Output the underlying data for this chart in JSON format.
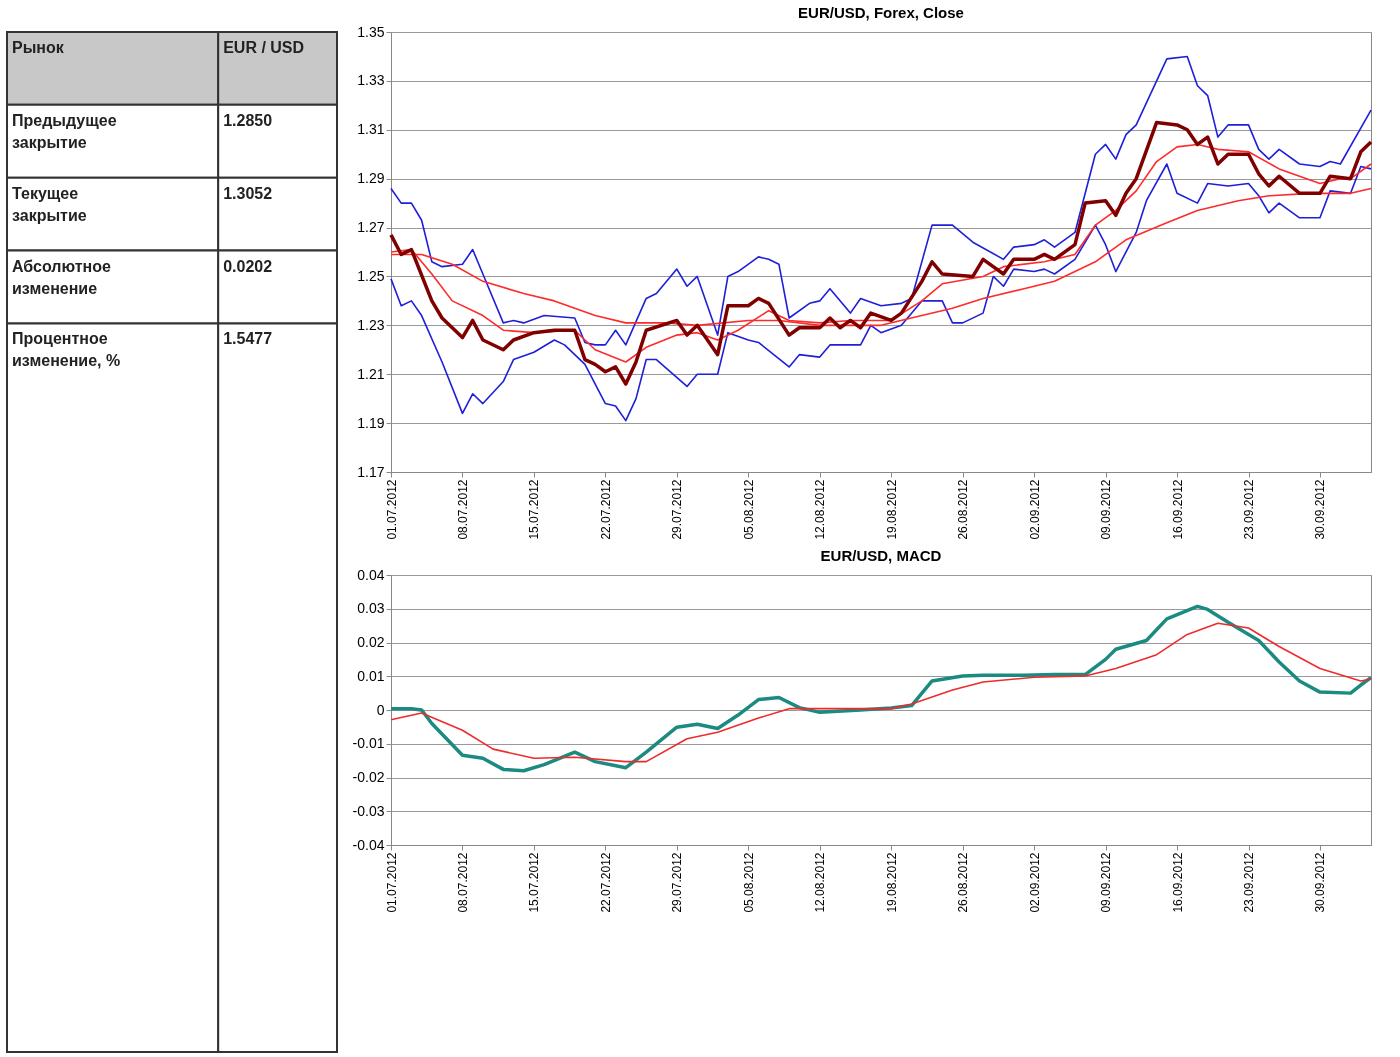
{
  "chart_data": [
    {
      "type": "other",
      "title": "Рынок",
      "subtitle": "EUR / USD",
      "categories": [
        "Предыдущее закрытие",
        "Текущее закрытие",
        "Абсолютное изменение",
        "Процентное изменение, %"
      ],
      "value_labels": [
        "1.2850",
        "1.3052",
        "0.0202",
        "1.5477"
      ]
    },
    {
      "type": "line",
      "title": "EUR/USD, Forex, Close",
      "grid": "y",
      "ylim": [
        1.17,
        1.35
      ],
      "yticks": [
        1.17,
        1.19,
        1.21,
        1.23,
        1.25,
        1.27,
        1.29,
        1.31,
        1.33,
        1.35
      ],
      "xlim": [
        "2012-07-01",
        "2012-10-05"
      ],
      "xticks": [
        {
          "value": "2012-07-01",
          "label": "01.07.2012"
        },
        {
          "value": "2012-07-08",
          "label": "08.07.2012"
        },
        {
          "value": "2012-07-15",
          "label": "15.07.2012"
        },
        {
          "value": "2012-07-22",
          "label": "22.07.2012"
        },
        {
          "value": "2012-07-29",
          "label": "29.07.2012"
        },
        {
          "value": "2012-08-05",
          "label": "05.08.2012"
        },
        {
          "value": "2012-08-12",
          "label": "12.08.2012"
        },
        {
          "value": "2012-08-19",
          "label": "19.08.2012"
        },
        {
          "value": "2012-08-26",
          "label": "26.08.2012"
        },
        {
          "value": "2012-09-02",
          "label": "02.09.2012"
        },
        {
          "value": "2012-09-09",
          "label": "09.09.2012"
        },
        {
          "value": "2012-09-16",
          "label": "16.09.2012"
        },
        {
          "value": "2012-09-23",
          "label": "23.09.2012"
        },
        {
          "value": "2012-09-30",
          "label": "30.09.2012"
        }
      ],
      "series": [
        {
          "color": "#1f1fd8",
          "x": [
            "2012-07-01",
            "2012-07-02",
            "2012-07-03",
            "2012-07-04",
            "2012-07-05",
            "2012-07-06",
            "2012-07-08",
            "2012-07-09",
            "2012-07-10",
            "2012-07-12",
            "2012-07-13",
            "2012-07-14",
            "2012-07-16",
            "2012-07-19",
            "2012-07-20",
            "2012-07-21",
            "2012-07-22",
            "2012-07-23",
            "2012-07-24",
            "2012-07-26",
            "2012-07-27",
            "2012-07-29",
            "2012-07-30",
            "2012-07-31",
            "2012-08-02",
            "2012-08-03",
            "2012-08-04",
            "2012-08-06",
            "2012-08-07",
            "2012-08-08",
            "2012-08-09",
            "2012-08-11",
            "2012-08-12",
            "2012-08-13",
            "2012-08-15",
            "2012-08-16",
            "2012-08-18",
            "2012-08-20",
            "2012-08-21",
            "2012-08-23",
            "2012-08-25",
            "2012-08-27",
            "2012-08-30",
            "2012-08-31",
            "2012-09-02",
            "2012-09-03",
            "2012-09-04",
            "2012-09-06",
            "2012-09-08",
            "2012-09-09",
            "2012-09-10",
            "2012-09-11",
            "2012-09-12",
            "2012-09-15",
            "2012-09-17",
            "2012-09-18",
            "2012-09-19",
            "2012-09-20",
            "2012-09-21",
            "2012-09-23",
            "2012-09-24",
            "2012-09-25",
            "2012-09-26",
            "2012-09-28",
            "2012-09-30",
            "2012-10-01",
            "2012-10-02",
            "2012-10-05"
          ],
          "values": [
            1.286,
            1.28,
            1.28,
            1.273,
            1.256,
            1.254,
            1.255,
            1.261,
            1.251,
            1.231,
            1.232,
            1.231,
            1.234,
            1.233,
            1.223,
            1.222,
            1.222,
            1.228,
            1.222,
            1.241,
            1.243,
            1.253,
            1.246,
            1.25,
            1.226,
            1.25,
            1.252,
            1.258,
            1.257,
            1.255,
            1.233,
            1.239,
            1.24,
            1.245,
            1.235,
            1.241,
            1.238,
            1.239,
            1.241,
            1.271,
            1.271,
            1.264,
            1.257,
            1.262,
            1.263,
            1.265,
            1.262,
            1.268,
            1.3,
            1.304,
            1.298,
            1.308,
            1.312,
            1.339,
            1.34,
            1.328,
            1.324,
            1.307,
            1.312,
            1.312,
            1.302,
            1.298,
            1.302,
            1.296,
            1.295,
            1.297,
            1.296,
            1.318
          ]
        },
        {
          "color": "#1f1fd8",
          "x": [
            "2012-07-01",
            "2012-07-02",
            "2012-07-03",
            "2012-07-04",
            "2012-07-06",
            "2012-07-08",
            "2012-07-09",
            "2012-07-10",
            "2012-07-12",
            "2012-07-13",
            "2012-07-15",
            "2012-07-17",
            "2012-07-18",
            "2012-07-20",
            "2012-07-22",
            "2012-07-23",
            "2012-07-24",
            "2012-07-25",
            "2012-07-26",
            "2012-07-27",
            "2012-07-30",
            "2012-07-31",
            "2012-08-02",
            "2012-08-03",
            "2012-08-05",
            "2012-08-06",
            "2012-08-09",
            "2012-08-10",
            "2012-08-12",
            "2012-08-13",
            "2012-08-15",
            "2012-08-16",
            "2012-08-17",
            "2012-08-18",
            "2012-08-20",
            "2012-08-22",
            "2012-08-24",
            "2012-08-25",
            "2012-08-26",
            "2012-08-28",
            "2012-08-29",
            "2012-08-30",
            "2012-08-31",
            "2012-09-02",
            "2012-09-03",
            "2012-09-04",
            "2012-09-06",
            "2012-09-08",
            "2012-09-09",
            "2012-09-10",
            "2012-09-12",
            "2012-09-13",
            "2012-09-15",
            "2012-09-16",
            "2012-09-18",
            "2012-09-19",
            "2012-09-21",
            "2012-09-23",
            "2012-09-24",
            "2012-09-25",
            "2012-09-26",
            "2012-09-28",
            "2012-09-30",
            "2012-10-01",
            "2012-10-03",
            "2012-10-04",
            "2012-10-05"
          ],
          "values": [
            1.249,
            1.238,
            1.24,
            1.234,
            1.215,
            1.194,
            1.202,
            1.198,
            1.207,
            1.216,
            1.219,
            1.224,
            1.222,
            1.214,
            1.198,
            1.197,
            1.191,
            1.2,
            1.216,
            1.216,
            1.205,
            1.21,
            1.21,
            1.227,
            1.224,
            1.223,
            1.213,
            1.218,
            1.217,
            1.222,
            1.222,
            1.222,
            1.23,
            1.227,
            1.23,
            1.24,
            1.24,
            1.231,
            1.231,
            1.235,
            1.25,
            1.246,
            1.253,
            1.252,
            1.253,
            1.251,
            1.257,
            1.271,
            1.263,
            1.252,
            1.268,
            1.281,
            1.296,
            1.284,
            1.28,
            1.288,
            1.287,
            1.288,
            1.283,
            1.276,
            1.28,
            1.274,
            1.274,
            1.285,
            1.284,
            1.295,
            1.294
          ]
        },
        {
          "color": "#ff2a2a",
          "x": [
            "2012-07-01",
            "2012-07-04",
            "2012-07-07",
            "2012-07-10",
            "2012-07-14",
            "2012-07-17",
            "2012-07-21",
            "2012-07-24",
            "2012-07-28",
            "2012-07-31",
            "2012-08-05",
            "2012-08-08",
            "2012-08-12",
            "2012-08-15",
            "2012-08-18",
            "2012-08-22",
            "2012-08-25",
            "2012-08-28",
            "2012-09-01",
            "2012-09-04",
            "2012-09-08",
            "2012-09-11",
            "2012-09-15",
            "2012-09-18",
            "2012-09-22",
            "2012-09-25",
            "2012-09-29",
            "2012-10-03",
            "2012-10-05"
          ],
          "values": [
            1.259,
            1.259,
            1.255,
            1.248,
            1.243,
            1.24,
            1.234,
            1.231,
            1.231,
            1.23,
            1.232,
            1.232,
            1.23,
            1.23,
            1.23,
            1.234,
            1.237,
            1.241,
            1.245,
            1.248,
            1.256,
            1.265,
            1.272,
            1.277,
            1.281,
            1.283,
            1.284,
            1.284,
            1.286
          ]
        },
        {
          "color": "#ff2a2a",
          "x": [
            "2012-07-01",
            "2012-07-03",
            "2012-07-05",
            "2012-07-07",
            "2012-07-10",
            "2012-07-12",
            "2012-07-15",
            "2012-07-19",
            "2012-07-21",
            "2012-07-24",
            "2012-07-26",
            "2012-07-29",
            "2012-07-31",
            "2012-08-02",
            "2012-08-04",
            "2012-08-07",
            "2012-08-09",
            "2012-08-12",
            "2012-08-15",
            "2012-08-17",
            "2012-08-19",
            "2012-08-22",
            "2012-08-24",
            "2012-08-28",
            "2012-08-30",
            "2012-09-03",
            "2012-09-06",
            "2012-09-08",
            "2012-09-10",
            "2012-09-12",
            "2012-09-14",
            "2012-09-16",
            "2012-09-18",
            "2012-09-20",
            "2012-09-23",
            "2012-09-26",
            "2012-09-30",
            "2012-10-02",
            "2012-10-03",
            "2012-10-05"
          ],
          "values": [
            1.26,
            1.261,
            1.251,
            1.24,
            1.234,
            1.228,
            1.227,
            1.228,
            1.22,
            1.215,
            1.221,
            1.226,
            1.227,
            1.224,
            1.228,
            1.236,
            1.232,
            1.231,
            1.232,
            1.232,
            1.232,
            1.24,
            1.247,
            1.25,
            1.254,
            1.256,
            1.259,
            1.271,
            1.277,
            1.285,
            1.297,
            1.303,
            1.304,
            1.302,
            1.301,
            1.294,
            1.288,
            1.29,
            1.29,
            1.296
          ]
        },
        {
          "color": "#800000",
          "x": [
            "2012-07-01",
            "2012-07-02",
            "2012-07-03",
            "2012-07-05",
            "2012-07-06",
            "2012-07-08",
            "2012-07-09",
            "2012-07-10",
            "2012-07-12",
            "2012-07-13",
            "2012-07-15",
            "2012-07-17",
            "2012-07-19",
            "2012-07-20",
            "2012-07-21",
            "2012-07-22",
            "2012-07-23",
            "2012-07-24",
            "2012-07-25",
            "2012-07-26",
            "2012-07-29",
            "2012-07-30",
            "2012-07-31",
            "2012-08-02",
            "2012-08-03",
            "2012-08-05",
            "2012-08-06",
            "2012-08-07",
            "2012-08-09",
            "2012-08-10",
            "2012-08-12",
            "2012-08-13",
            "2012-08-14",
            "2012-08-15",
            "2012-08-16",
            "2012-08-17",
            "2012-08-19",
            "2012-08-20",
            "2012-08-22",
            "2012-08-23",
            "2012-08-24",
            "2012-08-27",
            "2012-08-28",
            "2012-08-30",
            "2012-08-31",
            "2012-09-02",
            "2012-09-03",
            "2012-09-04",
            "2012-09-06",
            "2012-09-07",
            "2012-09-09",
            "2012-09-10",
            "2012-09-11",
            "2012-09-12",
            "2012-09-14",
            "2012-09-16",
            "2012-09-17",
            "2012-09-18",
            "2012-09-19",
            "2012-09-20",
            "2012-09-21",
            "2012-09-23",
            "2012-09-24",
            "2012-09-25",
            "2012-09-26",
            "2012-09-28",
            "2012-09-30",
            "2012-10-01",
            "2012-10-03",
            "2012-10-04",
            "2012-10-05"
          ],
          "values": [
            1.267,
            1.259,
            1.261,
            1.24,
            1.233,
            1.225,
            1.232,
            1.224,
            1.22,
            1.224,
            1.227,
            1.228,
            1.228,
            1.216,
            1.214,
            1.211,
            1.213,
            1.206,
            1.215,
            1.228,
            1.232,
            1.226,
            1.23,
            1.218,
            1.238,
            1.238,
            1.241,
            1.239,
            1.226,
            1.229,
            1.229,
            1.233,
            1.229,
            1.232,
            1.229,
            1.235,
            1.232,
            1.235,
            1.248,
            1.256,
            1.251,
            1.25,
            1.257,
            1.251,
            1.257,
            1.257,
            1.259,
            1.257,
            1.263,
            1.28,
            1.281,
            1.275,
            1.284,
            1.29,
            1.313,
            1.312,
            1.31,
            1.304,
            1.307,
            1.296,
            1.3,
            1.3,
            1.292,
            1.287,
            1.291,
            1.284,
            1.284,
            1.291,
            1.29,
            1.301,
            1.305
          ]
        }
      ]
    },
    {
      "type": "line",
      "title": "EUR/USD, MACD",
      "grid": "y",
      "ylim": [
        -0.04,
        0.04
      ],
      "yticks": [
        -0.04,
        -0.03,
        -0.02,
        -0.01,
        0,
        0.01,
        0.02,
        0.03,
        0.04
      ],
      "xlim": [
        "2012-07-01",
        "2012-10-05"
      ],
      "xticks": [
        {
          "value": "2012-07-01",
          "label": "01.07.2012"
        },
        {
          "value": "2012-07-08",
          "label": "08.07.2012"
        },
        {
          "value": "2012-07-15",
          "label": "15.07.2012"
        },
        {
          "value": "2012-07-22",
          "label": "22.07.2012"
        },
        {
          "value": "2012-07-29",
          "label": "29.07.2012"
        },
        {
          "value": "2012-08-05",
          "label": "05.08.2012"
        },
        {
          "value": "2012-08-12",
          "label": "12.08.2012"
        },
        {
          "value": "2012-08-19",
          "label": "19.08.2012"
        },
        {
          "value": "2012-08-26",
          "label": "26.08.2012"
        },
        {
          "value": "2012-09-02",
          "label": "02.09.2012"
        },
        {
          "value": "2012-09-09",
          "label": "09.09.2012"
        },
        {
          "value": "2012-09-16",
          "label": "16.09.2012"
        },
        {
          "value": "2012-09-23",
          "label": "23.09.2012"
        },
        {
          "value": "2012-09-30",
          "label": "30.09.2012"
        }
      ],
      "series": [
        {
          "color": "#1b8a80",
          "x": [
            "2012-07-01",
            "2012-07-03",
            "2012-07-04",
            "2012-07-05",
            "2012-07-08",
            "2012-07-10",
            "2012-07-12",
            "2012-07-14",
            "2012-07-16",
            "2012-07-19",
            "2012-07-21",
            "2012-07-24",
            "2012-07-26",
            "2012-07-29",
            "2012-07-31",
            "2012-08-02",
            "2012-08-04",
            "2012-08-06",
            "2012-08-08",
            "2012-08-10",
            "2012-08-12",
            "2012-08-16",
            "2012-08-19",
            "2012-08-21",
            "2012-08-23",
            "2012-08-26",
            "2012-08-28",
            "2012-09-01",
            "2012-09-04",
            "2012-09-07",
            "2012-09-09",
            "2012-09-10",
            "2012-09-13",
            "2012-09-15",
            "2012-09-18",
            "2012-09-19",
            "2012-09-21",
            "2012-09-24",
            "2012-09-26",
            "2012-09-28",
            "2012-09-30",
            "2012-10-03",
            "2012-10-04",
            "2012-10-05"
          ],
          "values": [
            0.0004,
            0.0004,
            0,
            -0.004,
            -0.0134,
            -0.0143,
            -0.0176,
            -0.018,
            -0.0162,
            -0.0125,
            -0.0153,
            -0.0171,
            -0.0125,
            -0.0051,
            -0.0042,
            -0.0055,
            -0.0015,
            0.0031,
            0.0037,
            0.0007,
            -0.0007,
            0,
            0.0006,
            0.0013,
            0.0086,
            0.0101,
            0.0103,
            0.0103,
            0.0105,
            0.0105,
            0.015,
            0.018,
            0.0206,
            0.027,
            0.0307,
            0.0298,
            0.026,
            0.0206,
            0.0142,
            0.0086,
            0.0053,
            0.005,
            0.0074,
            0.0096
          ]
        },
        {
          "color": "#ee2b2b",
          "x": [
            "2012-07-01",
            "2012-07-04",
            "2012-07-08",
            "2012-07-11",
            "2012-07-15",
            "2012-07-19",
            "2012-07-24",
            "2012-07-26",
            "2012-07-30",
            "2012-08-02",
            "2012-08-06",
            "2012-08-09",
            "2012-08-13",
            "2012-08-19",
            "2012-08-21",
            "2012-08-25",
            "2012-08-28",
            "2012-09-02",
            "2012-09-07",
            "2012-09-10",
            "2012-09-14",
            "2012-09-17",
            "2012-09-20",
            "2012-09-23",
            "2012-09-26",
            "2012-09-30",
            "2012-10-04",
            "2012-10-05"
          ],
          "values": [
            -0.0029,
            -0.0009,
            -0.006,
            -0.0116,
            -0.0143,
            -0.014,
            -0.0153,
            -0.0153,
            -0.0085,
            -0.0066,
            -0.0024,
            0.0004,
            0.0004,
            0.0004,
            0.0018,
            0.0059,
            0.0083,
            0.0097,
            0.0101,
            0.0123,
            0.0164,
            0.0224,
            0.0257,
            0.0243,
            0.0188,
            0.0123,
            0.0086,
            0.0092
          ]
        }
      ]
    }
  ]
}
